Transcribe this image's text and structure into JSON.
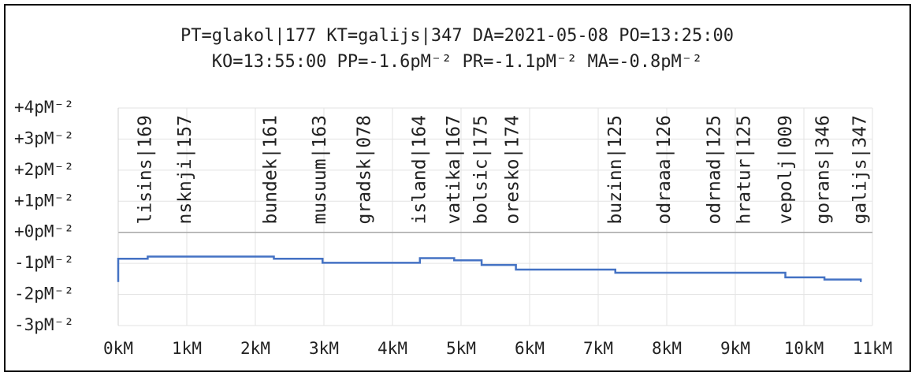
{
  "chart_data": {
    "type": "line",
    "title": [
      "PT=glakol|177 KT=galijs|347 DA=2021-05-08 PO=13:25:00",
      "KO=13:55:00 PP=-1.6pM⁻² PR=-1.1pM⁻² MA=-0.8pM⁻²"
    ],
    "x": [
      0,
      0,
      0.43,
      0.43,
      2.27,
      2.27,
      2.98,
      2.98,
      4.4,
      4.4,
      4.9,
      4.9,
      5.3,
      5.3,
      5.8,
      5.8,
      7.25,
      7.25,
      9.73,
      9.73,
      10.3,
      10.3,
      10.83,
      10.83
    ],
    "series": [
      {
        "color": "#4472c4",
        "values": [
          -1.6,
          -0.85,
          -0.85,
          -0.78,
          -0.78,
          -0.85,
          -0.85,
          -0.98,
          -0.98,
          -0.83,
          -0.83,
          -0.9,
          -0.9,
          -1.05,
          -1.05,
          -1.2,
          -1.2,
          -1.3,
          -1.3,
          -1.45,
          -1.45,
          -1.52,
          -1.52,
          -1.6
        ]
      }
    ],
    "xlim": [
      0,
      11
    ],
    "xticks": [
      {
        "value": 0,
        "label": "0kM"
      },
      {
        "value": 1,
        "label": "1kM"
      },
      {
        "value": 2,
        "label": "2kM"
      },
      {
        "value": 3,
        "label": "3kM"
      },
      {
        "value": 4,
        "label": "4kM"
      },
      {
        "value": 5,
        "label": "5kM"
      },
      {
        "value": 6,
        "label": "6kM"
      },
      {
        "value": 7,
        "label": "7kM"
      },
      {
        "value": 8,
        "label": "8kM"
      },
      {
        "value": 9,
        "label": "9kM"
      },
      {
        "value": 10,
        "label": "10kM"
      },
      {
        "value": 11,
        "label": "11kM"
      }
    ],
    "ylim": [
      -3,
      4
    ],
    "yticks": [
      {
        "value": -3,
        "label": "-3pM⁻²"
      },
      {
        "value": -2,
        "label": "-2pM⁻²"
      },
      {
        "value": -1,
        "label": "-1pM⁻²"
      },
      {
        "value": 0,
        "label": "+0pM⁻²"
      },
      {
        "value": 1,
        "label": "+1pM⁻²"
      },
      {
        "value": 2,
        "label": "+2pM⁻²"
      },
      {
        "value": 3,
        "label": "+3pM⁻²"
      },
      {
        "value": 4,
        "label": "+4pM⁻²"
      }
    ],
    "grid": true,
    "annotations": [
      {
        "text": "lisins|169",
        "x": 0.4
      },
      {
        "text": "nsknji|157",
        "x": 0.98
      },
      {
        "text": "bundek|161",
        "x": 2.23
      },
      {
        "text": "musuum|163",
        "x": 2.95
      },
      {
        "text": "gradsk|078",
        "x": 3.6
      },
      {
        "text": "island|164",
        "x": 4.4
      },
      {
        "text": "vatika|167",
        "x": 4.9
      },
      {
        "text": "bolsic|175",
        "x": 5.3
      },
      {
        "text": "oresko|174",
        "x": 5.76
      },
      {
        "text": "buzinn|125",
        "x": 7.26
      },
      {
        "text": "odraaa|126",
        "x": 7.97
      },
      {
        "text": "odrnad|125",
        "x": 8.7
      },
      {
        "text": "hratur|125",
        "x": 9.14
      },
      {
        "text": "vepolj|009",
        "x": 9.74
      },
      {
        "text": "gorans|346",
        "x": 10.29
      },
      {
        "text": "galijs|347",
        "x": 10.83
      }
    ]
  }
}
